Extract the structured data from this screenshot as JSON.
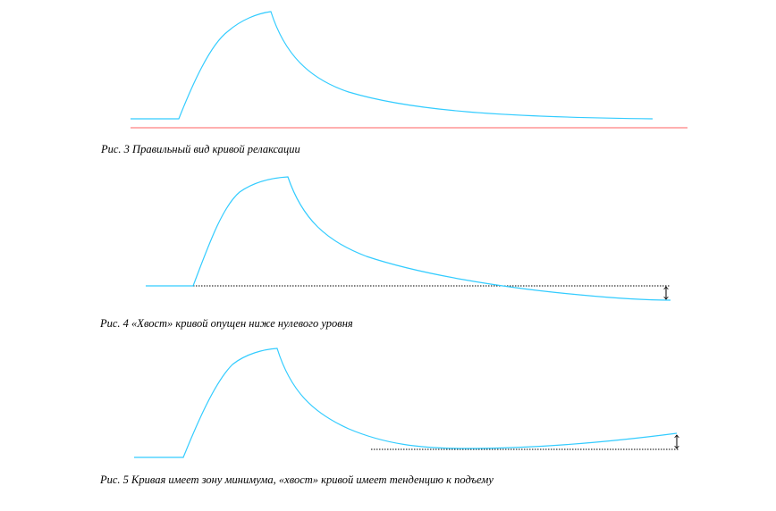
{
  "colors": {
    "curve": "#33ccff",
    "zero_line": "#ff8080",
    "reference_line": "#000000",
    "caption_text": "#000000"
  },
  "figures": [
    {
      "id": "fig3",
      "caption": "Рис.  3 Правильный вид кривой релаксации",
      "has_zero_line": true,
      "has_dotted_baseline": false,
      "has_double_arrow": false
    },
    {
      "id": "fig4",
      "caption": "Рис.  4 «Хвост» кривой опущен ниже нулевого уровня",
      "has_zero_line": false,
      "has_dotted_baseline": true,
      "has_double_arrow": true
    },
    {
      "id": "fig5",
      "caption": "Рис.  5 Кривая имеет зону минимума, «хвост» кривой имеет тенденцию к подъему",
      "has_zero_line": false,
      "has_dotted_baseline": true,
      "has_double_arrow": true
    }
  ]
}
